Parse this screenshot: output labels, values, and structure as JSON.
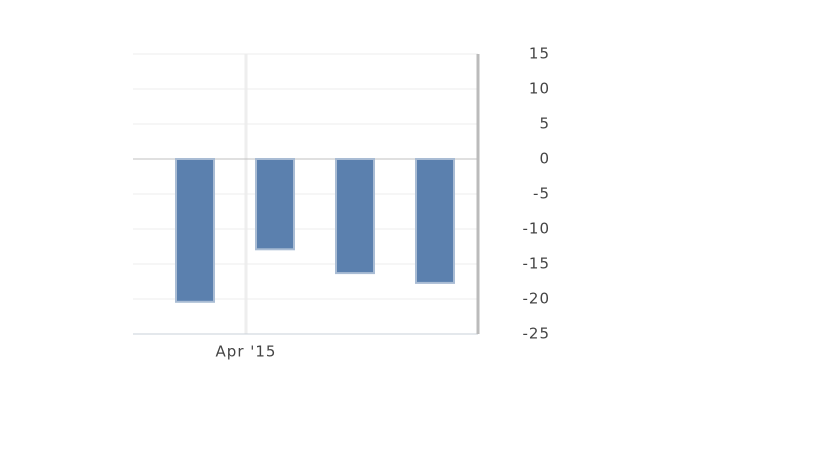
{
  "chart_data": {
    "type": "bar",
    "categories": [
      "Apr '15",
      null,
      null,
      null
    ],
    "values": [
      -20.4,
      -12.9,
      -16.3,
      -17.7
    ],
    "color": "#5b80ae",
    "ylim": [
      -25,
      15
    ],
    "yticks": [
      -25,
      -20,
      -15,
      -10,
      -5,
      0,
      5,
      10,
      15
    ],
    "grid": true,
    "y_axis_side": "right"
  }
}
